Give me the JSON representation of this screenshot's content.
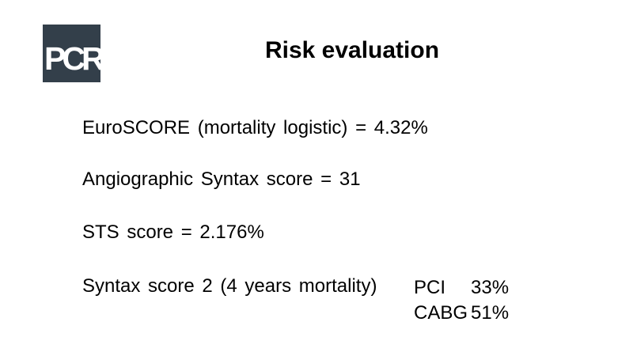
{
  "header": {
    "logo_text": "PCR",
    "title": "Risk evaluation"
  },
  "colors": {
    "background": "#ffffff",
    "text": "#000000",
    "logo_background": "#333f4a",
    "logo_text": "#ffffff"
  },
  "body": {
    "lines": [
      "EuroSCORE (mortality logistic) = 4.32%",
      "Angiographic Syntax score = 31",
      "STS score = 2.176%",
      "Syntax score 2 (4 years mortality)"
    ],
    "risk_comparison": {
      "rows": [
        {
          "label": "PCI",
          "value": "33%"
        },
        {
          "label": "CABG",
          "value": "51%"
        }
      ]
    }
  }
}
